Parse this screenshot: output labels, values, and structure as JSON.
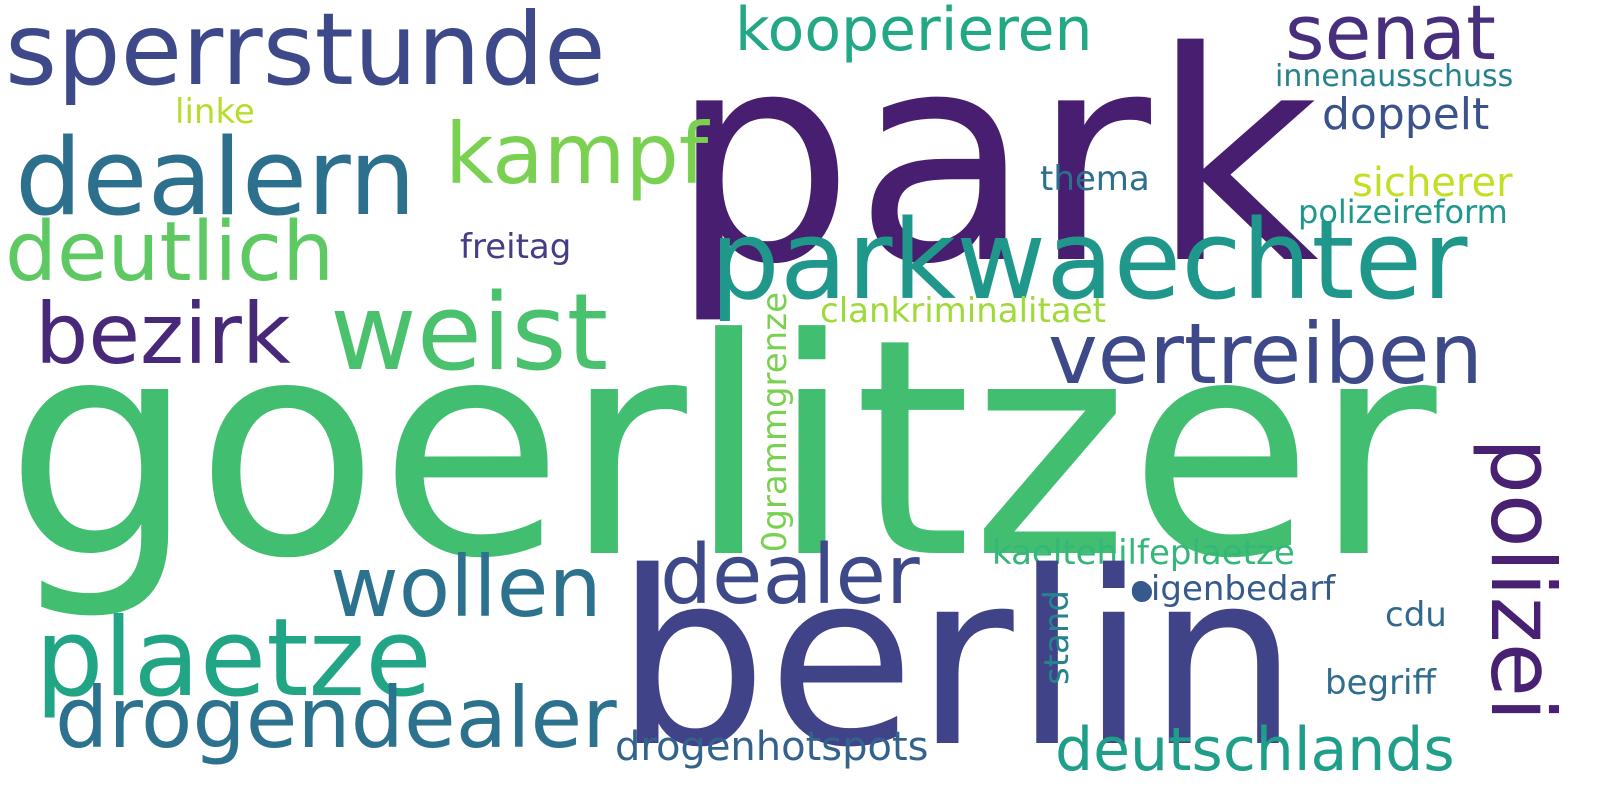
{
  "words": {
    "park": "park",
    "goerlitzer": "goerlitzer",
    "berlin": "berlin",
    "sperrstunde": "sperrstunde",
    "senat": "senat",
    "kooperieren": "kooperieren",
    "innenausschuss": "innenausschuss",
    "linke": "linke",
    "doppelt": "doppelt",
    "dealern": "dealern",
    "kampf": "kampf",
    "thema": "thema",
    "sicherer": "sicherer",
    "polizeireform": "polizeireform",
    "deutlich": "deutlich",
    "freitag": "freitag",
    "parkwaechter": "parkwaechter",
    "bezirk": "bezirk",
    "weist": "weist",
    "clankriminalitaet": "clankriminalitaet",
    "vertreiben": "vertreiben",
    "ogrammgrenze": "0grammgrenze",
    "polizei": "polizei",
    "kaeltehilfeplaetze": "kaeltehilfeplaetze",
    "dealer": "dealer",
    "wollen": "wollen",
    "eigenbedarf": "eigenbedarf",
    "plaetze": "plaetze",
    "cdu": "cdu",
    "stand": "stand",
    "begriff": "begriff",
    "drogendealer": "drogendealer",
    "drogenhotspots": "drogenhotspots",
    "deutschlands": "deutschlands"
  },
  "palette": {
    "background": "#ffffff",
    "dark_purple": "#481f70",
    "green": "#42be71",
    "indigo": "#404387",
    "teal": "#1f988b",
    "lime": "#b5de2b"
  }
}
